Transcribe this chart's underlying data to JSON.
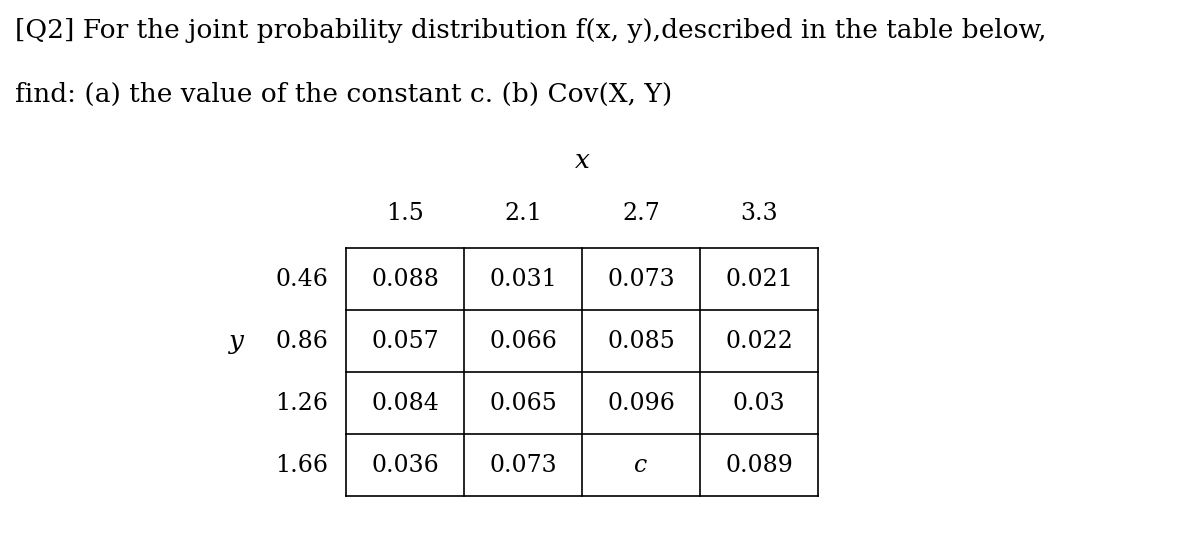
{
  "title_line1": "[Q2] For the joint probability distribution f(x, y),described in the table below,",
  "title_line2": "find: (a) the value of the constant c. (b) Cov(X, Y)",
  "x_label": "x",
  "y_label": "y",
  "x_values": [
    "1.5",
    "2.1",
    "2.7",
    "3.3"
  ],
  "y_values": [
    "0.46",
    "0.86",
    "1.26",
    "1.66"
  ],
  "table_data": [
    [
      "0.088",
      "0.031",
      "0.073",
      "0.021"
    ],
    [
      "0.057",
      "0.066",
      "0.085",
      "0.022"
    ],
    [
      "0.084",
      "0.065",
      "0.096",
      "0.03"
    ],
    [
      "0.036",
      "0.073",
      "c",
      "0.089"
    ]
  ],
  "bg_color": "#ffffff",
  "text_color": "#000000",
  "font_size_title": 19,
  "font_size_table": 17,
  "font_size_label": 19,
  "font_size_header": 17
}
